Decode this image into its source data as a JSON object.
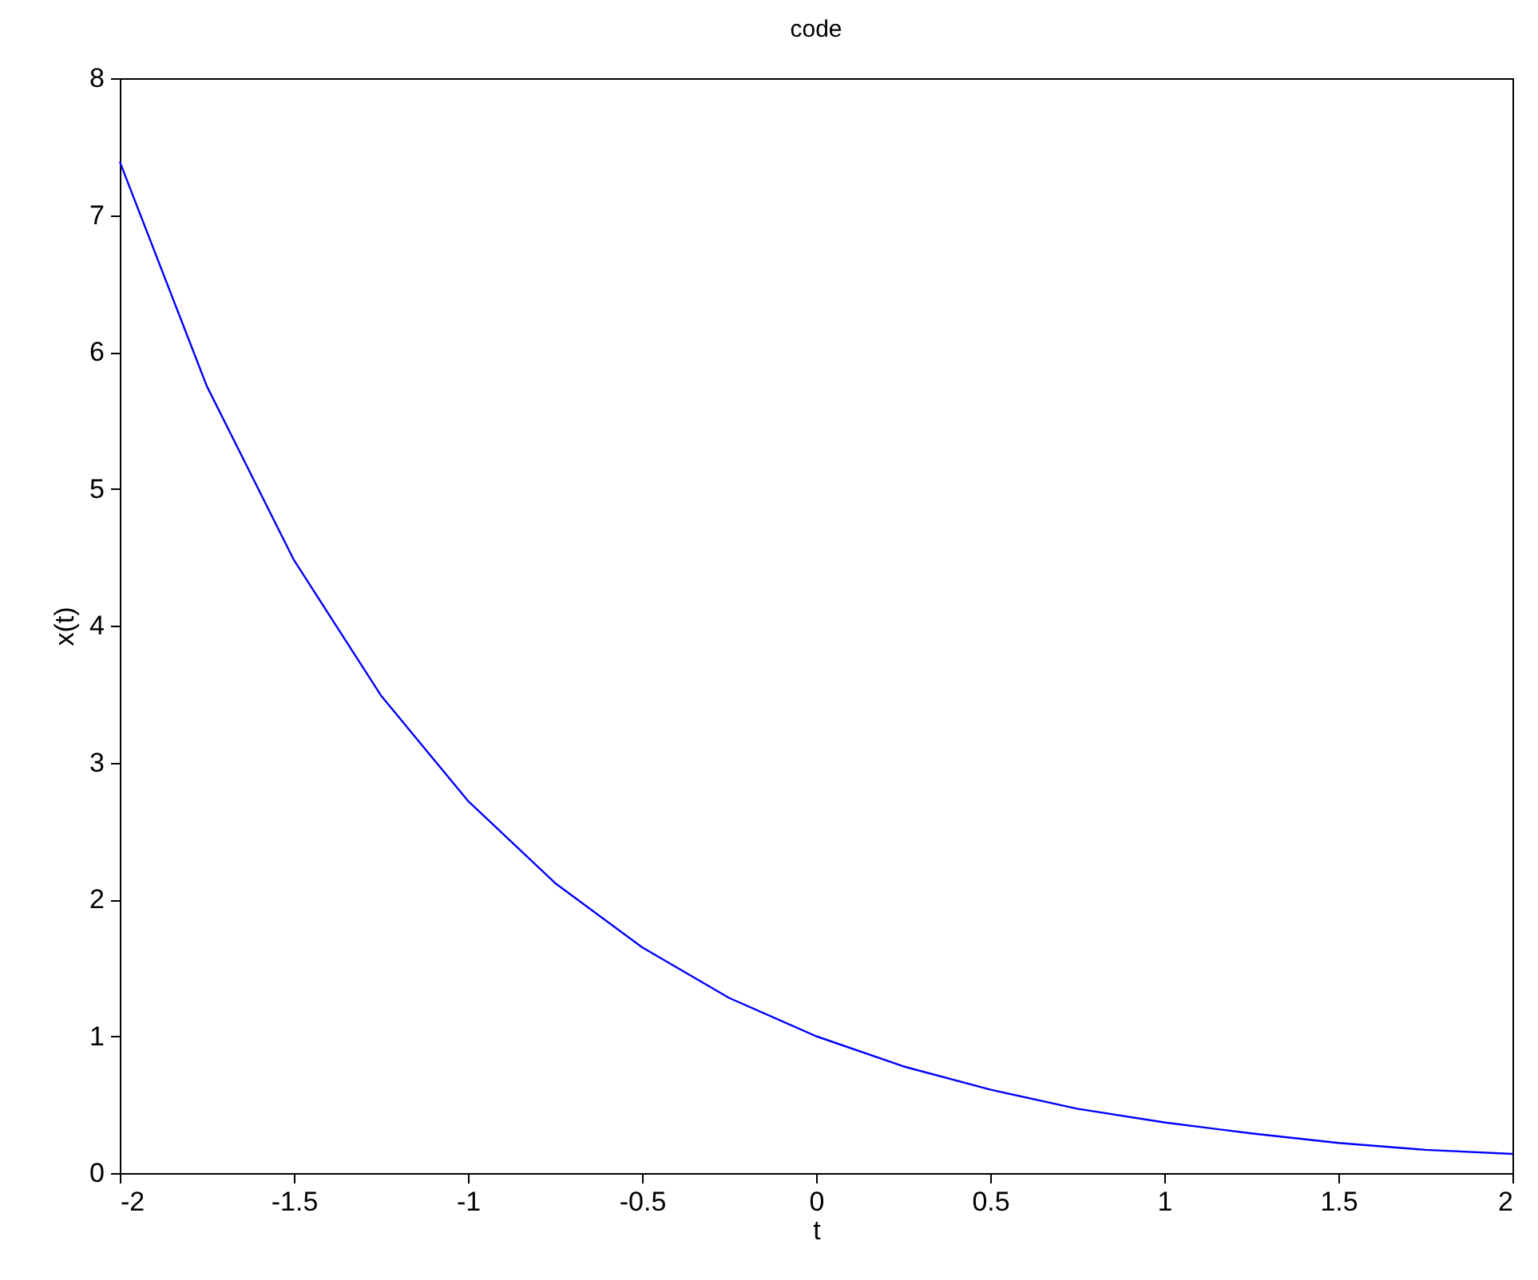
{
  "chart_data": {
    "type": "line",
    "title": "code",
    "xlabel": "t",
    "ylabel": "x(t)",
    "x": [
      -2,
      -1.75,
      -1.5,
      -1.25,
      -1,
      -0.75,
      -0.5,
      -0.25,
      0,
      0.25,
      0.5,
      0.75,
      1,
      1.25,
      1.5,
      1.75,
      2
    ],
    "series": [
      {
        "color": "#0000ff",
        "values": [
          7.39,
          5.75,
          4.48,
          3.49,
          2.72,
          2.12,
          1.65,
          1.28,
          1.0,
          0.78,
          0.61,
          0.47,
          0.37,
          0.29,
          0.22,
          0.17,
          0.14
        ]
      }
    ],
    "xlim": [
      -2,
      2
    ],
    "xticks": [
      -2,
      -1.5,
      -1,
      -0.5,
      0,
      0.5,
      1,
      1.5,
      2
    ],
    "ylim": [
      0,
      8
    ],
    "yticks": [
      0,
      1,
      2,
      3,
      4,
      5,
      6,
      7,
      8
    ],
    "grid": false,
    "marker": "none",
    "line_style": "solid"
  }
}
